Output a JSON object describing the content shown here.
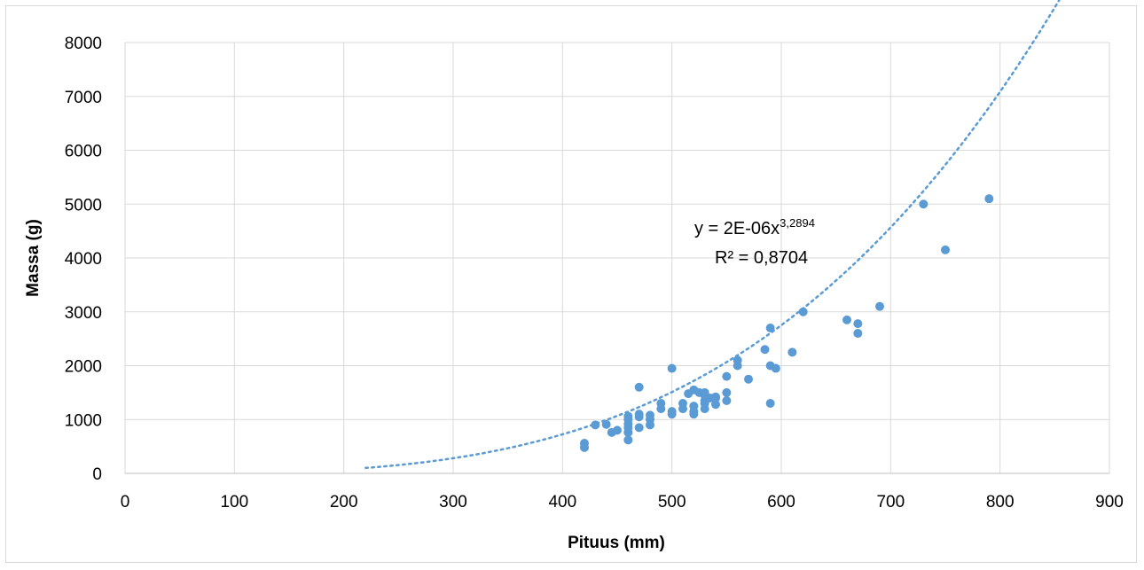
{
  "chart_data": {
    "type": "scatter",
    "xlabel": "Pituus (mm)",
    "ylabel": "Massa (g)",
    "xlim": [
      0,
      900
    ],
    "ylim": [
      0,
      8000
    ],
    "x_ticks": [
      "0",
      "100",
      "200",
      "300",
      "400",
      "500",
      "600",
      "700",
      "800",
      "900"
    ],
    "y_ticks": [
      "0",
      "1000",
      "2000",
      "3000",
      "4000",
      "5000",
      "6000",
      "7000",
      "8000"
    ],
    "grid": true,
    "marker_color": "#5b9bd5",
    "trendline": {
      "type": "power",
      "coefficient": 2e-06,
      "exponent": 3.2894,
      "x_range": [
        220,
        900
      ],
      "equation_prefix": "y = 2E-06x",
      "equation_exponent": "3,2894",
      "r_squared_label": "R² = 0,8704",
      "style": "dotted"
    },
    "points": [
      [
        420,
        480
      ],
      [
        420,
        560
      ],
      [
        430,
        900
      ],
      [
        440,
        910
      ],
      [
        445,
        760
      ],
      [
        450,
        800
      ],
      [
        460,
        620
      ],
      [
        460,
        760
      ],
      [
        460,
        850
      ],
      [
        460,
        920
      ],
      [
        460,
        1000
      ],
      [
        460,
        1060
      ],
      [
        470,
        850
      ],
      [
        470,
        1050
      ],
      [
        470,
        1100
      ],
      [
        470,
        1600
      ],
      [
        480,
        900
      ],
      [
        480,
        1000
      ],
      [
        480,
        1080
      ],
      [
        490,
        1200
      ],
      [
        490,
        1300
      ],
      [
        500,
        1100
      ],
      [
        500,
        1150
      ],
      [
        500,
        1950
      ],
      [
        510,
        1200
      ],
      [
        510,
        1300
      ],
      [
        515,
        1480
      ],
      [
        520,
        1100
      ],
      [
        520,
        1150
      ],
      [
        520,
        1250
      ],
      [
        520,
        1550
      ],
      [
        525,
        1500
      ],
      [
        530,
        1200
      ],
      [
        530,
        1300
      ],
      [
        530,
        1350
      ],
      [
        530,
        1450
      ],
      [
        530,
        1500
      ],
      [
        535,
        1400
      ],
      [
        540,
        1280
      ],
      [
        540,
        1400
      ],
      [
        540,
        1420
      ],
      [
        550,
        1350
      ],
      [
        550,
        1500
      ],
      [
        550,
        1800
      ],
      [
        560,
        2000
      ],
      [
        560,
        2100
      ],
      [
        570,
        1750
      ],
      [
        585,
        2300
      ],
      [
        590,
        1300
      ],
      [
        590,
        2000
      ],
      [
        590,
        2700
      ],
      [
        595,
        1950
      ],
      [
        610,
        2250
      ],
      [
        620,
        3000
      ],
      [
        660,
        2850
      ],
      [
        670,
        2600
      ],
      [
        670,
        2780
      ],
      [
        690,
        3100
      ],
      [
        730,
        5000
      ],
      [
        750,
        4150
      ],
      [
        790,
        5100
      ]
    ]
  }
}
